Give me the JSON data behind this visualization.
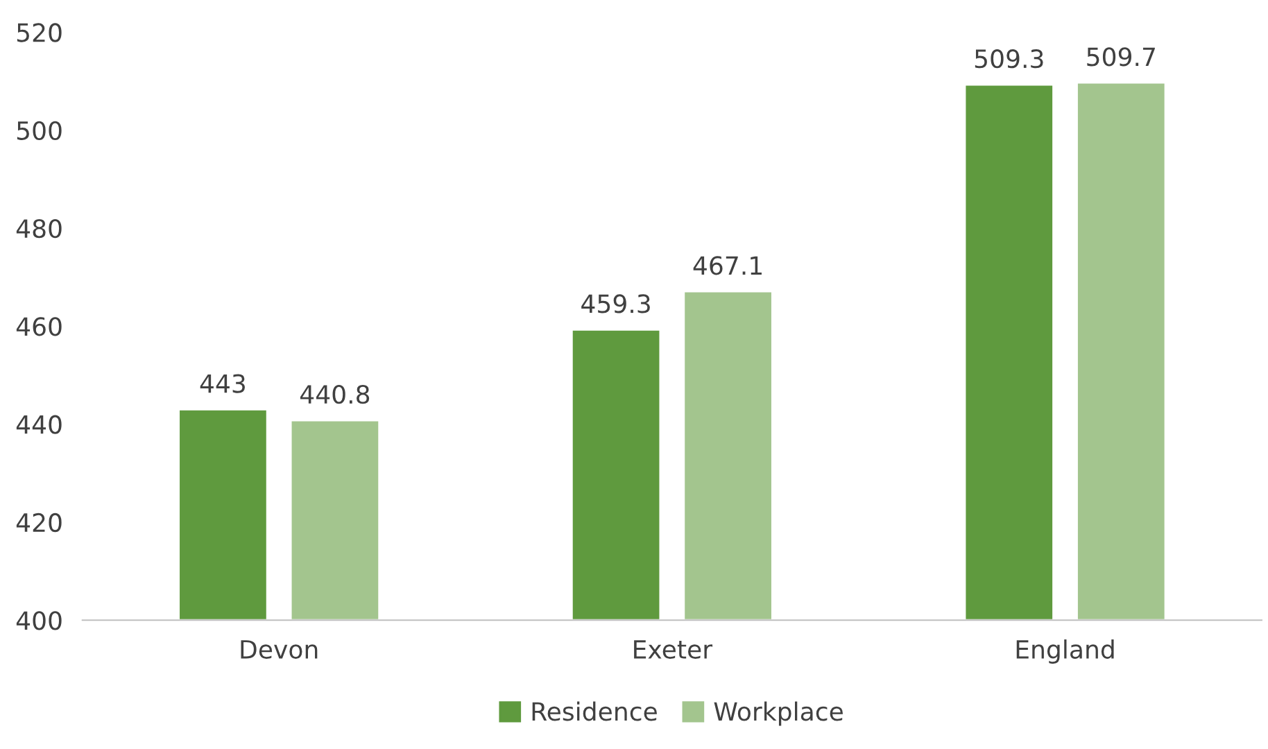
{
  "chart_data": {
    "type": "bar",
    "categories": [
      "Devon",
      "Exeter",
      "England"
    ],
    "series": [
      {
        "name": "Residence",
        "color": "#5f9a3e",
        "values": [
          443,
          459.3,
          509.3
        ]
      },
      {
        "name": "Workplace",
        "color": "#a3c58e",
        "values": [
          440.8,
          467.1,
          509.7
        ]
      }
    ],
    "ylim": [
      400,
      520
    ],
    "yticks": [
      400,
      420,
      440,
      460,
      480,
      500,
      520
    ],
    "data_labels": true,
    "grid": false,
    "legend": "bottom"
  }
}
